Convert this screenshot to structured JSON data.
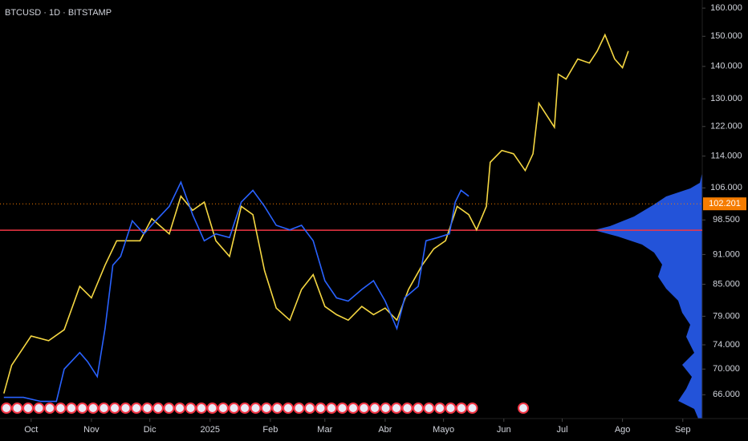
{
  "chart_data": {
    "type": "line",
    "title": "BTCUSD · 1D · BITSTAMP",
    "log_scale": true,
    "xlim": [
      -16,
      345
    ],
    "ylim": [
      62.5,
      163
    ],
    "xticks": [
      {
        "value": 0,
        "label": "Oct"
      },
      {
        "value": 31,
        "label": "Nov"
      },
      {
        "value": 61,
        "label": "Dic"
      },
      {
        "value": 92,
        "label": "2025"
      },
      {
        "value": 123,
        "label": "Feb"
      },
      {
        "value": 151,
        "label": "Mar"
      },
      {
        "value": 182,
        "label": "Abr"
      },
      {
        "value": 212,
        "label": "Mayo"
      },
      {
        "value": 243,
        "label": "Jun"
      },
      {
        "value": 273,
        "label": "Jul"
      },
      {
        "value": 304,
        "label": "Ago"
      },
      {
        "value": 335,
        "label": "Sep"
      }
    ],
    "yticks": [
      {
        "value": 160,
        "label": "160.000"
      },
      {
        "value": 150,
        "label": "150.000"
      },
      {
        "value": 140,
        "label": "140.000"
      },
      {
        "value": 130,
        "label": "130.000"
      },
      {
        "value": 122,
        "label": "122.000"
      },
      {
        "value": 114,
        "label": "114.000"
      },
      {
        "value": 106,
        "label": "106.000"
      },
      {
        "value": 98.5,
        "label": "98.500"
      },
      {
        "value": 91,
        "label": "91.000"
      },
      {
        "value": 85,
        "label": "85.000"
      },
      {
        "value": 79,
        "label": "79.000"
      },
      {
        "value": 74,
        "label": "74.000"
      },
      {
        "value": 70,
        "label": "70.000"
      },
      {
        "value": 66,
        "label": "66.000"
      }
    ],
    "last_price": {
      "value": 102.201,
      "label": "102.201",
      "color": "#f57c00"
    },
    "level": {
      "value": 96.2,
      "color": "#f23645"
    },
    "series": [
      {
        "color": "#f5d742",
        "x": [
          -14,
          -10,
          0,
          9,
          17,
          25,
          31,
          38,
          44,
          50,
          56,
          62,
          71,
          77,
          83,
          89,
          95,
          102,
          108,
          114,
          120,
          126,
          133,
          139,
          145,
          151,
          157,
          163,
          170,
          176,
          182,
          188,
          194,
          201,
          207,
          213,
          219,
          225,
          229,
          234,
          236,
          242,
          248,
          254,
          258,
          261,
          265,
          269,
          271,
          275,
          281,
          287,
          291,
          295,
          300,
          304,
          307
        ],
        "values": [
          66.2,
          70.6,
          75.5,
          74.7,
          76.6,
          84.6,
          82.4,
          88.8,
          93.9,
          93.9,
          93.9,
          98.8,
          95.4,
          104,
          100.7,
          102.6,
          93.9,
          90.6,
          101.6,
          99.7,
          87.7,
          80.5,
          78.3,
          84,
          86.9,
          80.8,
          79.3,
          78.3,
          80.8,
          79.3,
          80.5,
          78.3,
          84,
          88.8,
          92.2,
          93.9,
          101.6,
          99.7,
          96.3,
          101.6,
          112.4,
          115.5,
          114.6,
          110.3,
          114.6,
          128.7,
          125.2,
          121.8,
          137.5,
          136,
          142.4,
          141.1,
          145,
          150.5,
          142.4,
          139.6,
          145
        ]
      },
      {
        "color": "#2962ff",
        "x": [
          -14,
          -4,
          5,
          13,
          17,
          25,
          29,
          34,
          38,
          42,
          46,
          52,
          58,
          64,
          71,
          77,
          83,
          89,
          95,
          102,
          108,
          114,
          120,
          126,
          133,
          139,
          145,
          151,
          157,
          163,
          170,
          176,
          182,
          188,
          192,
          199,
          203,
          209,
          215,
          218,
          221,
          225
        ],
        "values": [
          65.6,
          65.6,
          65,
          65,
          70,
          72.7,
          71.2,
          68.8,
          76.8,
          88.8,
          90.6,
          98.3,
          95.4,
          98.3,
          101.6,
          107.4,
          99.7,
          93.9,
          95.4,
          94.6,
          102.6,
          105.4,
          101.6,
          97.3,
          96.3,
          97.3,
          93.9,
          85.7,
          82.4,
          81.8,
          84,
          85.7,
          81.8,
          76.8,
          82.4,
          84.6,
          93.9,
          94.6,
          95.4,
          102.6,
          105.4,
          104
        ]
      }
    ]
  }
}
